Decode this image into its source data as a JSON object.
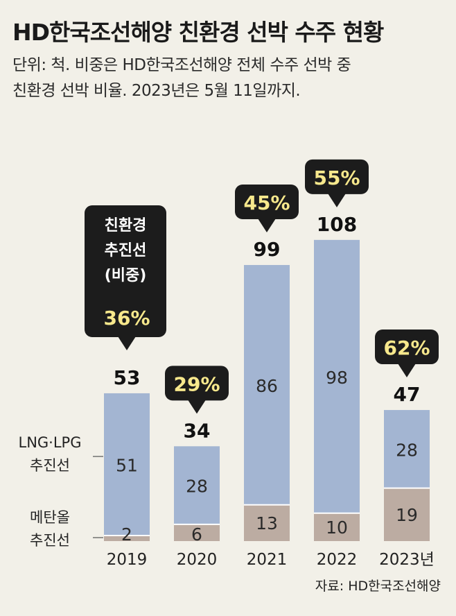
{
  "title": "HD한국조선해양 친환경 선박 수주 현황",
  "subtitle": {
    "line1": "단위: 척. 비중은 HD한국조선해양 전체 수주 선박 중",
    "line2": "친환경 선박 비율. 2023년은 5월 11일까지."
  },
  "callout": {
    "line1": "친환경",
    "line2": "추진선",
    "line3": "(비중)"
  },
  "legend": {
    "lng_line1": "LNG·LPG",
    "lng_line2": "추진선",
    "methanol_line1": "메탄올",
    "methanol_line2": "추진선"
  },
  "source": "자료: HD한국조선해양",
  "colors": {
    "lng": "#a3b5d2",
    "methanol": "#bcaca2",
    "callout_bg": "#1c1c1c",
    "callout_text": "#f7e88c"
  },
  "chart_data": {
    "type": "bar",
    "stacked": true,
    "categories": [
      "2019",
      "2020",
      "2021",
      "2022",
      "2023년"
    ],
    "series": [
      {
        "name": "메탄올 추진선",
        "values": [
          2,
          6,
          13,
          10,
          19
        ]
      },
      {
        "name": "LNG·LPG 추진선",
        "values": [
          51,
          28,
          86,
          98,
          28
        ]
      }
    ],
    "totals": [
      53,
      34,
      99,
      108,
      47
    ],
    "share_labels": [
      "36%",
      "29%",
      "45%",
      "55%",
      "62%"
    ],
    "title": "HD한국조선해양 친환경 선박 수주 현황",
    "xlabel": "",
    "ylabel": "척",
    "ylim": [
      0,
      108
    ]
  }
}
